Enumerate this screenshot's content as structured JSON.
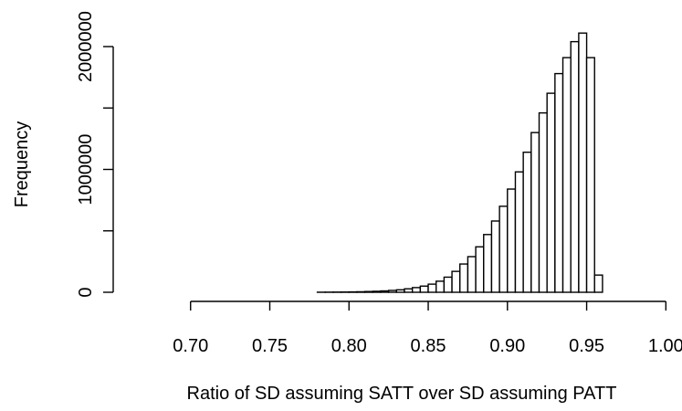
{
  "chart_data": {
    "type": "bar",
    "title": "",
    "xlabel": "Ratio of SD assuming SATT over SD assuming PATT",
    "ylabel": "Frequency",
    "xlim": [
      0.665,
      1.005
    ],
    "ylim": [
      0,
      2100000
    ],
    "x_ticks": [
      0.7,
      0.75,
      0.8,
      0.85,
      0.9,
      0.95,
      1.0
    ],
    "x_tick_labels": [
      "0.70",
      "0.75",
      "0.80",
      "0.85",
      "0.90",
      "0.95",
      "1.00"
    ],
    "y_ticks": [
      0,
      1000000,
      2000000
    ],
    "y_tick_labels": [
      "0",
      "1000000",
      "2000000"
    ],
    "bin_width": 0.005,
    "bin_start": 0.665,
    "values": [
      0,
      0,
      0,
      0,
      0,
      0,
      0,
      0,
      0,
      0,
      0,
      0,
      0,
      0,
      0,
      0,
      0,
      0,
      0,
      0,
      0,
      0,
      0,
      500,
      1000,
      1500,
      2000,
      3000,
      4000,
      6000,
      8000,
      11000,
      15000,
      20000,
      28000,
      38000,
      50000,
      66000,
      90000,
      123000,
      170000,
      230000,
      290000,
      370000,
      470000,
      580000,
      700000,
      840000,
      980000,
      1140000,
      1300000,
      1460000,
      1620000,
      1780000,
      1910000,
      2040000,
      2110000,
      1910000,
      140000
    ],
    "grid": false,
    "legend": "none"
  }
}
